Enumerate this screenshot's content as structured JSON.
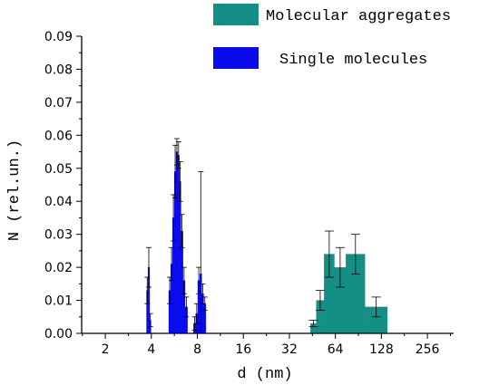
{
  "chart_data": {
    "type": "bar",
    "xlabel": "d (nm)",
    "ylabel": "N (rel.un.)",
    "x_scale": "log2",
    "xlim": [
      1.4,
      380
    ],
    "ylim": [
      0,
      0.09
    ],
    "x_ticks": [
      2,
      4,
      8,
      16,
      32,
      64,
      128,
      256
    ],
    "x_tick_labels": [
      "2",
      "4",
      "8",
      "16",
      "32",
      "64",
      "128",
      "256"
    ],
    "y_ticks": [
      0.0,
      0.01,
      0.02,
      0.03,
      0.04,
      0.05,
      0.06,
      0.07,
      0.08,
      0.09
    ],
    "y_tick_labels": [
      "0.00",
      "0.01",
      "0.02",
      "0.03",
      "0.04",
      "0.05",
      "0.06",
      "0.07",
      "0.08",
      "0.09"
    ],
    "legend_position": "top-right",
    "series": [
      {
        "name": "Molecular aggregates",
        "color": "#138f85",
        "bars": [
          {
            "x0": 44,
            "x1": 48,
            "y": 0.003,
            "err": 0.001
          },
          {
            "x0": 48,
            "x1": 54,
            "y": 0.01,
            "err": 0.003
          },
          {
            "x0": 54,
            "x1": 63,
            "y": 0.024,
            "err": 0.007
          },
          {
            "x0": 63,
            "x1": 75,
            "y": 0.02,
            "err": 0.006
          },
          {
            "x0": 75,
            "x1": 100,
            "y": 0.024,
            "err": 0.006
          },
          {
            "x0": 100,
            "x1": 140,
            "y": 0.008,
            "err": 0.003
          }
        ]
      },
      {
        "name": "Single molecules",
        "color": "#0a0aee",
        "bars": [
          {
            "x0": 3.72,
            "x1": 3.8,
            "y": 0.013,
            "err": 0.004
          },
          {
            "x0": 3.8,
            "x1": 3.9,
            "y": 0.02,
            "err": 0.006
          },
          {
            "x0": 3.9,
            "x1": 3.98,
            "y": 0.004,
            "err": 0.002
          },
          {
            "x0": 5.2,
            "x1": 5.35,
            "y": 0.013,
            "err": 0.004
          },
          {
            "x0": 5.35,
            "x1": 5.5,
            "y": 0.021,
            "err": 0.005
          },
          {
            "x0": 5.5,
            "x1": 5.65,
            "y": 0.035,
            "err": 0.007
          },
          {
            "x0": 5.65,
            "x1": 5.8,
            "y": 0.049,
            "err": 0.008
          },
          {
            "x0": 5.8,
            "x1": 5.95,
            "y": 0.055,
            "err": 0.004
          },
          {
            "x0": 5.95,
            "x1": 6.1,
            "y": 0.054,
            "err": 0.004
          },
          {
            "x0": 6.1,
            "x1": 6.25,
            "y": 0.046,
            "err": 0.006
          },
          {
            "x0": 6.25,
            "x1": 6.45,
            "y": 0.031,
            "err": 0.005
          },
          {
            "x0": 6.45,
            "x1": 6.65,
            "y": 0.016,
            "err": 0.004
          },
          {
            "x0": 6.65,
            "x1": 6.9,
            "y": 0.008,
            "err": 0.003
          },
          {
            "x0": 7.55,
            "x1": 7.8,
            "y": 0.003,
            "err": 0.002
          },
          {
            "x0": 7.8,
            "x1": 8.05,
            "y": 0.006,
            "err": 0.003
          },
          {
            "x0": 8.05,
            "x1": 8.3,
            "y": 0.016,
            "err": 0.004
          },
          {
            "x0": 8.3,
            "x1": 8.55,
            "y": 0.018,
            "err": 0.031
          },
          {
            "x0": 8.55,
            "x1": 8.8,
            "y": 0.012,
            "err": 0.003
          },
          {
            "x0": 8.8,
            "x1": 9.1,
            "y": 0.009,
            "err": 0.002
          }
        ]
      }
    ]
  }
}
